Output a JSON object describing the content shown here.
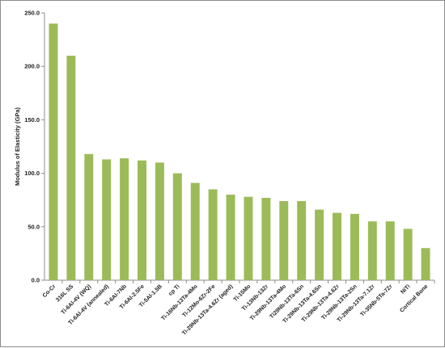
{
  "chart_data": {
    "type": "bar",
    "ylabel": "Modulus of Elasticity (GPa)",
    "xlabel": "",
    "ylim": [
      0,
      250
    ],
    "yticks": [
      "0.0",
      "50.0",
      "100.0",
      "150.0",
      "200.0",
      "250.0"
    ],
    "grid": false,
    "bar_color": "#9bbb59",
    "categories": [
      "Co-Cr",
      "316L SS",
      "Ti-6Al-4V (WQ)",
      "Ti-6Al-4V (annealed)",
      "Ti-6Al-7Nb",
      "Ti-6Al-2.5Fe",
      "Ti-5Al-1.5B",
      "cp Ti",
      "Ti-16Nb-13Ta-4Mo",
      "Ti-12Mo-6Zr-2Fe",
      "Ti-29Nb-13Ta-4.6Zr (aged)",
      "Ti-15Mo",
      "Ti-13Nb-13Zr",
      "Ti-29Nb-13Ta-4Mo",
      "Ti29Nb-13Ta-6Sn",
      "Ti-29Nb-13Ta-4.6Sn",
      "Ti-29Nb-13Ta-4.6Zr",
      "Ti-29Nb-13Ta-2Sn",
      "Ti-29Nb-13Ta-7.1Zr",
      "Ti-35Nb-5Ta-7Zr",
      "NiTi",
      "Cortical Bone"
    ],
    "values": [
      240,
      210,
      118,
      113,
      114,
      112,
      110,
      100,
      91,
      85,
      80,
      78,
      77,
      74,
      74,
      66,
      63,
      62,
      55,
      55,
      48,
      30
    ]
  }
}
